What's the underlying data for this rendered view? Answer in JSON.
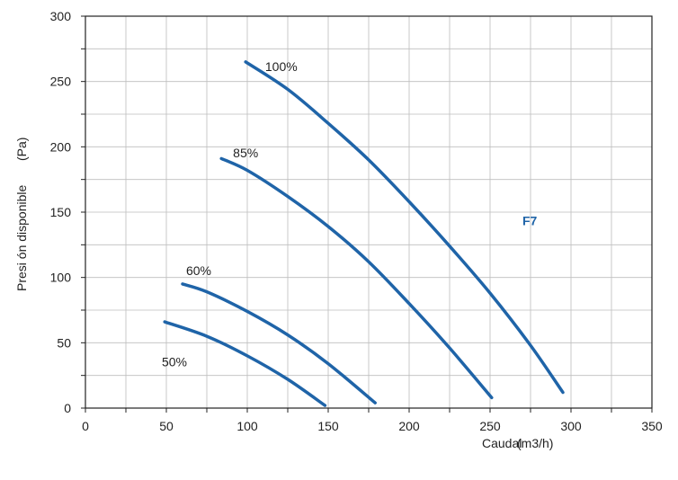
{
  "chart_data": {
    "type": "line",
    "title": "",
    "xlabel": "Caudal",
    "xlabel_unit": "(m3/h)",
    "ylabel": "Presi ón disponible",
    "ylabel_unit": "(Pa)",
    "xlim": [
      0,
      350
    ],
    "ylim": [
      0,
      300
    ],
    "xticks": [
      "0",
      "50",
      "100",
      "150",
      "200",
      "250",
      "300",
      "350"
    ],
    "yticks": [
      "0",
      "50",
      "100",
      "150",
      "200",
      "250",
      "300"
    ],
    "grid": true,
    "line_color": "#1f64a8",
    "annotation": {
      "text": "F7",
      "x": 270,
      "y": 140,
      "color": "#1f64a8"
    },
    "series": [
      {
        "name": "100%",
        "label_at": [
          121,
          258
        ],
        "x": [
          99,
          125,
          150,
          175,
          200,
          225,
          250,
          275,
          295
        ],
        "y": [
          265,
          244,
          218,
          190,
          158,
          124,
          88,
          48,
          12
        ]
      },
      {
        "name": "85%",
        "label_at": [
          99,
          192
        ],
        "x": [
          84,
          100,
          125,
          150,
          175,
          200,
          225,
          251
        ],
        "y": [
          191,
          182,
          162,
          139,
          112,
          80,
          46,
          8
        ]
      },
      {
        "name": "60%",
        "label_at": [
          70,
          102
        ],
        "x": [
          60,
          75,
          100,
          125,
          150,
          179
        ],
        "y": [
          95,
          89,
          74,
          56,
          34,
          4
        ]
      },
      {
        "name": "50%",
        "label_at": [
          55,
          32
        ],
        "x": [
          49,
          75,
          100,
          125,
          148
        ],
        "y": [
          66,
          55,
          40,
          22,
          2
        ]
      }
    ]
  }
}
